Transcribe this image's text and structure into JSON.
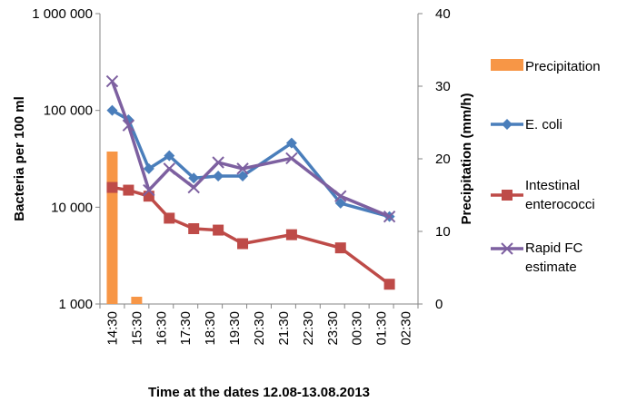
{
  "chart_data": {
    "type": "bar+line",
    "title": "",
    "xlabel": "Time at the dates 12.08-13.08.2013",
    "ylabel_left": "Bacteria per 100 ml",
    "ylabel_right": "Precipitation (mm/h)",
    "y_left_scale": "log",
    "y_left_lim": [
      1000,
      1000000
    ],
    "y_left_ticks": [
      "1 000",
      "10 000",
      "100 000",
      "1 000 000"
    ],
    "y_right_lim": [
      0,
      40
    ],
    "y_right_ticks": [
      "0",
      "10",
      "20",
      "30",
      "40"
    ],
    "grid": false,
    "legend_position": "right",
    "categories": [
      "14:30",
      "15:30",
      "16:30",
      "17:30",
      "18:30",
      "19:30",
      "20:30",
      "21:30",
      "22:30",
      "23:30",
      "00:30",
      "01:30",
      "02:30"
    ],
    "bar_series": {
      "name": "Precipitation",
      "axis": "right",
      "color": "#F79646",
      "x": [
        "14:30",
        "15:30"
      ],
      "values": [
        21,
        1
      ]
    },
    "line_series": [
      {
        "name": "E. coli",
        "axis": "left",
        "color": "#4A7EBB",
        "marker": "diamond",
        "x": [
          "14:30",
          "15:10",
          "16:00",
          "16:50",
          "17:50",
          "18:50",
          "19:50",
          "21:50",
          "23:50",
          "01:50"
        ],
        "values": [
          100000,
          80000,
          25000,
          34000,
          20000,
          21000,
          21000,
          46000,
          11000,
          8000
        ]
      },
      {
        "name": "Intestinal enterococci",
        "axis": "left",
        "color": "#BE4B48",
        "marker": "square",
        "x": [
          "14:30",
          "15:10",
          "16:00",
          "16:50",
          "17:50",
          "18:50",
          "19:50",
          "21:50",
          "23:50",
          "01:50"
        ],
        "values": [
          16000,
          15000,
          13000,
          7700,
          6000,
          5800,
          4200,
          5200,
          3800,
          1600
        ]
      },
      {
        "name": "Rapid FC estimate",
        "axis": "left",
        "color": "#7D60A0",
        "marker": "x",
        "x": [
          "14:30",
          "15:10",
          "16:00",
          "16:50",
          "17:50",
          "18:50",
          "19:50",
          "21:50",
          "23:50",
          "01:50"
        ],
        "values": [
          200000,
          70000,
          15000,
          25000,
          16000,
          29000,
          25000,
          32000,
          13000,
          8000
        ]
      }
    ],
    "legend": [
      "Precipitation",
      "E. coli",
      "Intestinal enterococci",
      "Rapid FC estimate"
    ]
  }
}
